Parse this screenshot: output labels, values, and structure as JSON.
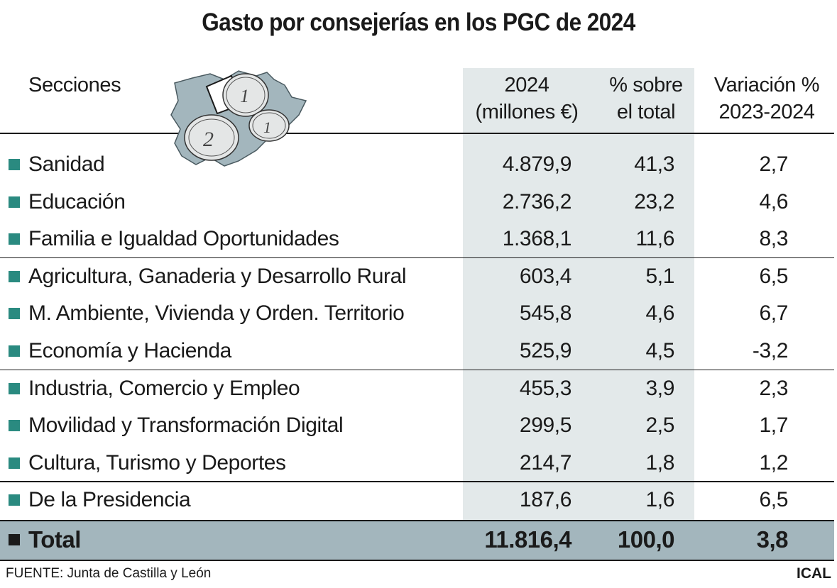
{
  "title": "Gasto por consejerías en los PGC de 2024",
  "headers": {
    "sections": "Secciones",
    "col1_line1": "2024",
    "col1_line2": "(millones €)",
    "col2_line1": "% sobre",
    "col2_line2": "el total",
    "col3_line1": "Variación %",
    "col3_line2": "2023-2024"
  },
  "colors": {
    "bullet": "#2a8a80",
    "column_shade": "#e3e9ea",
    "total_band": "#a3b6bd",
    "map": "#a3b6bd"
  },
  "chart_data": {
    "type": "table",
    "title": "Gasto por consejerías en los PGC de 2024",
    "columns": [
      "Secciones",
      "2024 (millones €)",
      "% sobre el total",
      "Variación % 2023-2024"
    ],
    "rows": [
      {
        "label": "Sanidad",
        "amount": "4.879,9",
        "share": "41,3",
        "change": "2,7"
      },
      {
        "label": "Educación",
        "amount": "2.736,2",
        "share": "23,2",
        "change": "4,6"
      },
      {
        "label": "Familia e Igualdad Oportunidades",
        "amount": "1.368,1",
        "share": "11,6",
        "change": "8,3"
      },
      {
        "label": "Agricultura, Ganaderia y Desarrollo Rural",
        "amount": "603,4",
        "share": "5,1",
        "change": "6,5"
      },
      {
        "label": "M. Ambiente, Vivienda y Orden. Territorio",
        "amount": "545,8",
        "share": "4,6",
        "change": "6,7"
      },
      {
        "label": "Economía y Hacienda",
        "amount": "525,9",
        "share": "4,5",
        "change": "-3,2"
      },
      {
        "label": "Industria, Comercio y Empleo",
        "amount": "455,3",
        "share": "3,9",
        "change": "2,3"
      },
      {
        "label": "Movilidad y Transformación Digital",
        "amount": "299,5",
        "share": "2,5",
        "change": "1,7"
      },
      {
        "label": "Cultura, Turismo y Deportes",
        "amount": "214,7",
        "share": "1,8",
        "change": "1,2"
      },
      {
        "label": "De la Presidencia",
        "amount": "187,6",
        "share": "1,6",
        "change": "6,5"
      }
    ],
    "total": {
      "label": "Total",
      "amount": "11.816,4",
      "share": "100,0",
      "change": "3,8"
    }
  },
  "footer": {
    "source": "FUENTE: Junta de Castilla y León",
    "brand": "ICAL"
  }
}
